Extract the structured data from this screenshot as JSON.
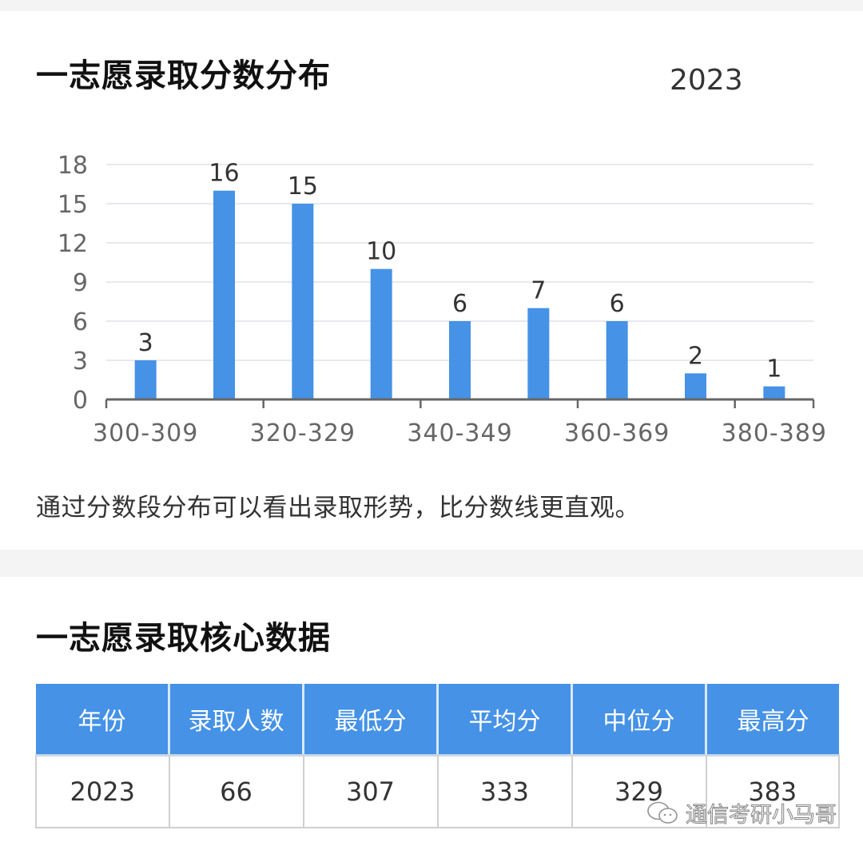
{
  "distribution": {
    "title": "一志愿录取分数分布",
    "year": "2023",
    "caption": "通过分数段分布可以看出录取形势，比分数线更直观。"
  },
  "core": {
    "title": "一志愿录取核心数据",
    "headers": [
      "年份",
      "录取人数",
      "最低分",
      "平均分",
      "中位分",
      "最高分"
    ],
    "rows": [
      [
        "2023",
        "66",
        "307",
        "333",
        "329",
        "383"
      ]
    ]
  },
  "watermark": {
    "text": "通信考研小马哥",
    "icon": "wechat-icon"
  },
  "colors": {
    "bar": "#4592e6",
    "header_bg": "#4592e6",
    "grid": "#e6e9ee",
    "axis": "#666666"
  },
  "chart_data": {
    "type": "bar",
    "title": "一志愿录取分数分布",
    "subtitle": "2023",
    "categories": [
      "300-309",
      "310-319",
      "320-329",
      "330-339",
      "340-349",
      "350-359",
      "360-369",
      "370-379",
      "380-389"
    ],
    "visible_tick_labels": [
      "300-309",
      "320-329",
      "340-349",
      "360-369",
      "380-389"
    ],
    "values": [
      3,
      16,
      15,
      10,
      6,
      7,
      6,
      2,
      1
    ],
    "data_labels": [
      "3",
      "16",
      "15",
      "10",
      "6",
      "7",
      "6",
      "2",
      "1"
    ],
    "xlabel": "",
    "ylabel": "",
    "yticks": [
      0,
      3,
      6,
      9,
      12,
      15,
      18
    ],
    "ylim": [
      0,
      18
    ],
    "grid": true,
    "legend": null
  }
}
